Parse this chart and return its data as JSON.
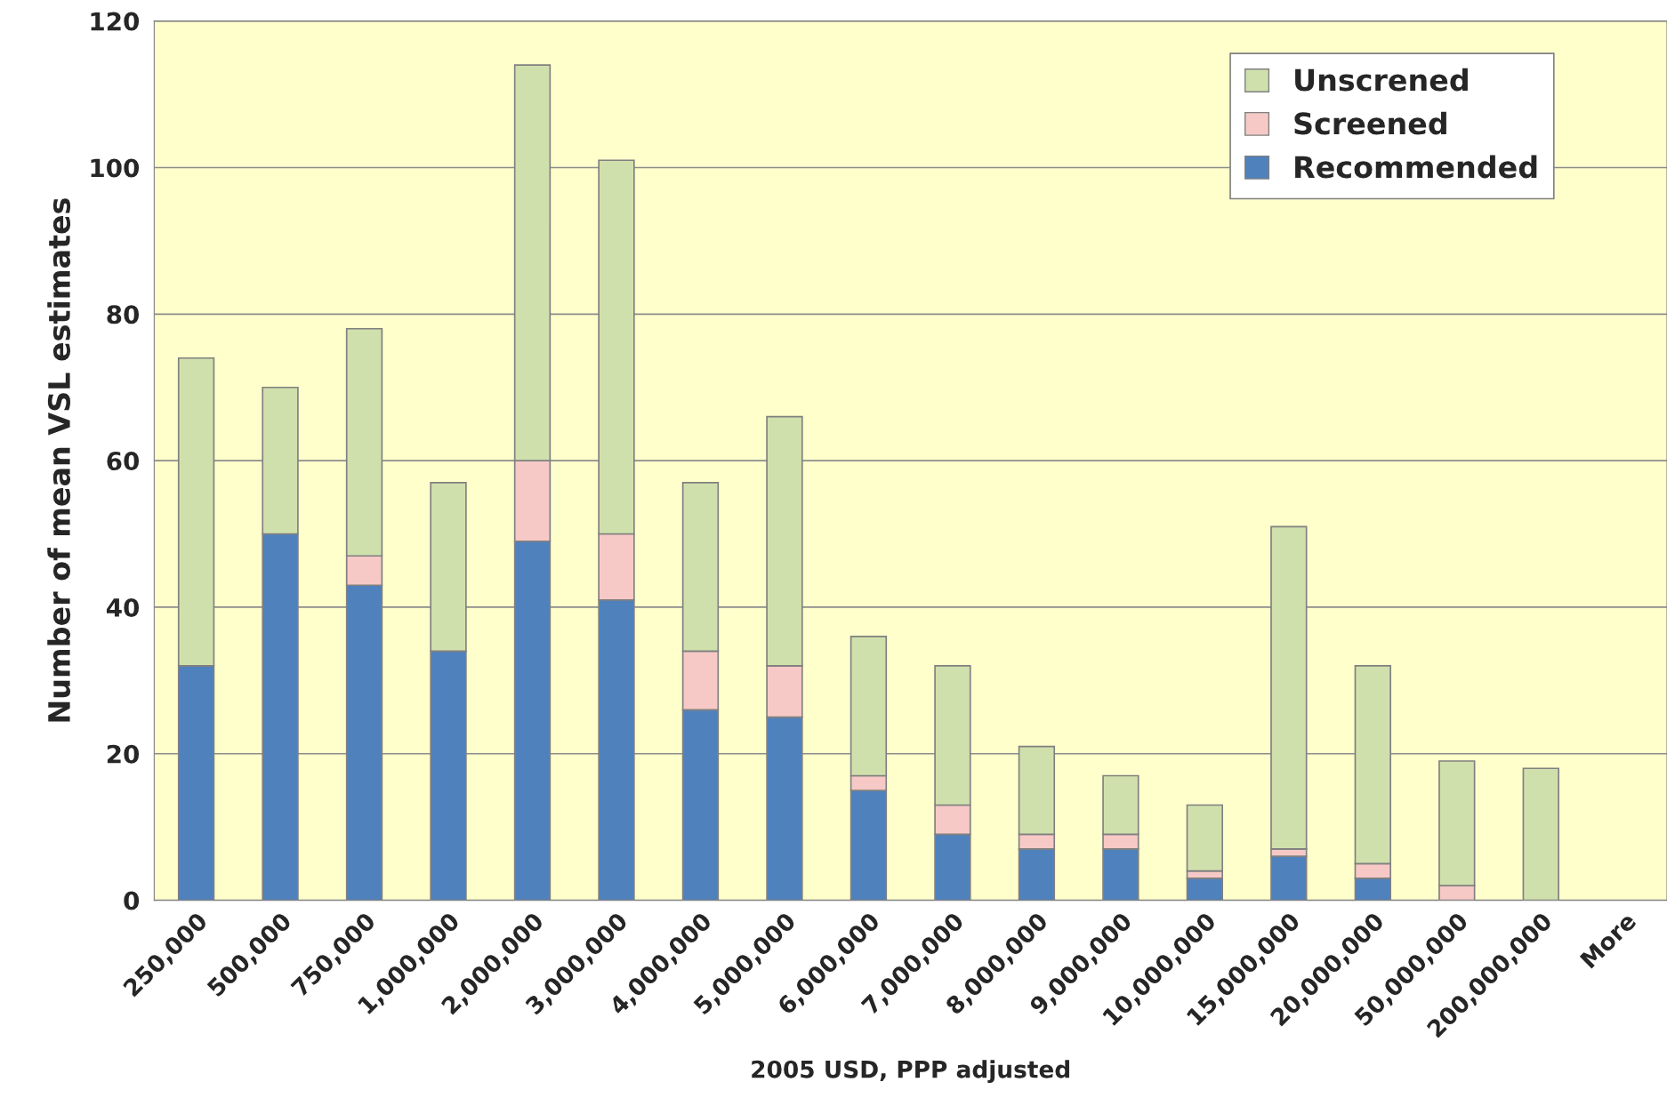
{
  "chart_data": {
    "type": "bar",
    "stacked": true,
    "xlabel": "2005 USD, PPP adjusted",
    "ylabel": "Number of mean VSL estimates",
    "categories": [
      "250,000",
      "500,000",
      "750,000",
      "1,000,000",
      "2,000,000",
      "3,000,000",
      "4,000,000",
      "5,000,000",
      "6,000,000",
      "7,000,000",
      "8,000,000",
      "9,000,000",
      "10,000,000",
      "15,000,000",
      "20,000,000",
      "50,000,000",
      "200,000,000",
      "More"
    ],
    "series": [
      {
        "name": "Recommended",
        "color": "#4f81bd",
        "values": [
          32,
          50,
          43,
          34,
          49,
          41,
          26,
          25,
          15,
          9,
          7,
          7,
          3,
          6,
          3,
          0,
          0,
          0
        ]
      },
      {
        "name": "Screened",
        "color": "#f6c9c6",
        "values": [
          0,
          0,
          4,
          0,
          11,
          9,
          8,
          7,
          2,
          4,
          2,
          2,
          1,
          1,
          2,
          2,
          0,
          0
        ]
      },
      {
        "name": "Unscrened",
        "color": "#d0e0ad",
        "values": [
          42,
          20,
          31,
          23,
          54,
          51,
          23,
          34,
          19,
          19,
          12,
          8,
          9,
          44,
          27,
          17,
          18,
          0
        ]
      }
    ],
    "ylim": [
      0,
      120
    ],
    "yticks": [
      0,
      20,
      40,
      60,
      80,
      100,
      120
    ],
    "grid": "y",
    "legend": "top right"
  }
}
